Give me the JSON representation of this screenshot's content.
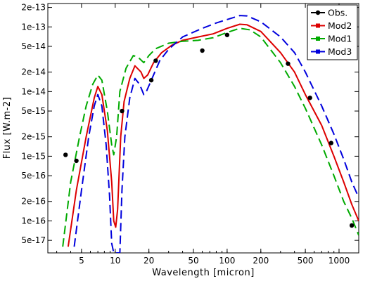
{
  "chart_data": {
    "type": "line",
    "xlabel": "Wavelength [micron]",
    "ylabel": "Flux [W.m-2]",
    "x_scale": "log",
    "y_scale": "log",
    "xlim": [
      2.5,
      1500
    ],
    "ylim": [
      3.2e-17,
      2.3e-13
    ],
    "x_ticks": [
      5,
      10,
      20,
      50,
      100,
      200,
      500,
      1000
    ],
    "x_tick_labels": [
      "5",
      "10",
      "20",
      "50",
      "100",
      "200",
      "500",
      "1000"
    ],
    "y_ticks": [
      5e-17,
      1e-16,
      2e-16,
      5e-16,
      1e-15,
      2e-15,
      5e-15,
      1e-14,
      2e-14,
      5e-14,
      1e-13,
      2e-13
    ],
    "y_tick_labels": [
      "5e-17",
      "1e-16",
      "2e-16",
      "5e-16",
      "1e-15",
      "2e-15",
      "5e-15",
      "1e-14",
      "2e-14",
      "5e-14",
      "1e-13",
      "2e-13"
    ],
    "grid": false,
    "legend_position": "top-right",
    "observations": {
      "name": "Obs.",
      "color": "#000000",
      "points": [
        [
          3.6,
          1.05e-15
        ],
        [
          4.5,
          8.5e-16
        ],
        [
          11.5,
          5e-15
        ],
        [
          21,
          1.5e-14
        ],
        [
          23,
          3e-14
        ],
        [
          60,
          4.3e-14
        ],
        [
          100,
          7.5e-14
        ],
        [
          350,
          2.7e-14
        ],
        [
          550,
          8e-15
        ],
        [
          850,
          1.6e-15
        ],
        [
          1300,
          8.5e-17
        ]
      ]
    },
    "series": [
      {
        "name": "Mod2",
        "color": "#dd0000",
        "dash": "solid",
        "points": [
          [
            3.8,
            4e-17
          ],
          [
            4.5,
            3e-16
          ],
          [
            5.5,
            2e-15
          ],
          [
            6.5,
            8e-15
          ],
          [
            7.0,
            1.2e-14
          ],
          [
            7.6,
            9e-15
          ],
          [
            8.5,
            2.5e-15
          ],
          [
            9.3,
            4e-16
          ],
          [
            9.7,
            1e-16
          ],
          [
            10.1,
            8e-17
          ],
          [
            10.5,
            1.5e-16
          ],
          [
            11.2,
            2e-15
          ],
          [
            12,
            7e-15
          ],
          [
            13.5,
            1.6e-14
          ],
          [
            15,
            2.5e-14
          ],
          [
            17,
            2e-14
          ],
          [
            18,
            1.6e-14
          ],
          [
            19.5,
            1.8e-14
          ],
          [
            22,
            2.8e-14
          ],
          [
            26,
            4e-14
          ],
          [
            32,
            5.2e-14
          ],
          [
            40,
            6.2e-14
          ],
          [
            55,
            7e-14
          ],
          [
            75,
            7.8e-14
          ],
          [
            100,
            9.5e-14
          ],
          [
            130,
            1.1e-13
          ],
          [
            150,
            1.08e-13
          ],
          [
            200,
            8.5e-14
          ],
          [
            300,
            4e-14
          ],
          [
            400,
            2e-14
          ],
          [
            500,
            9e-15
          ],
          [
            700,
            3e-15
          ],
          [
            900,
            1e-15
          ],
          [
            1100,
            4e-16
          ],
          [
            1300,
            1.8e-16
          ],
          [
            1500,
            1e-16
          ]
        ]
      },
      {
        "name": "Mod1",
        "color": "#00aa00",
        "dash": "dashed",
        "points": [
          [
            3.4,
            4e-17
          ],
          [
            4.0,
            4e-16
          ],
          [
            4.8,
            2e-15
          ],
          [
            5.5,
            6e-15
          ],
          [
            6.3,
            1.3e-14
          ],
          [
            7.0,
            1.8e-14
          ],
          [
            7.6,
            1.5e-14
          ],
          [
            8.5,
            5e-15
          ],
          [
            9.3,
            1.5e-15
          ],
          [
            9.7,
            1.05e-15
          ],
          [
            10.3,
            2e-15
          ],
          [
            11,
            1e-14
          ],
          [
            12.5,
            2.3e-14
          ],
          [
            14.5,
            3.6e-14
          ],
          [
            16,
            3.4e-14
          ],
          [
            18,
            2.8e-14
          ],
          [
            20,
            3.6e-14
          ],
          [
            23,
            4.6e-14
          ],
          [
            30,
            5.6e-14
          ],
          [
            40,
            6e-14
          ],
          [
            55,
            6.2e-14
          ],
          [
            75,
            6.8e-14
          ],
          [
            100,
            8.2e-14
          ],
          [
            130,
            9.5e-14
          ],
          [
            160,
            9e-14
          ],
          [
            200,
            7e-14
          ],
          [
            300,
            2.8e-14
          ],
          [
            400,
            1.2e-14
          ],
          [
            500,
            5.5e-15
          ],
          [
            700,
            1.5e-15
          ],
          [
            900,
            5e-16
          ],
          [
            1100,
            2e-16
          ],
          [
            1300,
            1.1e-16
          ],
          [
            1500,
            6e-17
          ]
        ]
      },
      {
        "name": "Mod3",
        "color": "#0000dd",
        "dash": "dashed",
        "points": [
          [
            4.3,
            4e-17
          ],
          [
            5.0,
            3e-16
          ],
          [
            5.8,
            2e-15
          ],
          [
            6.5,
            6e-15
          ],
          [
            7.0,
            9e-15
          ],
          [
            7.6,
            6e-15
          ],
          [
            8.3,
            1.5e-15
          ],
          [
            8.9,
            2.5e-16
          ],
          [
            9.3,
            4.5e-17
          ],
          [
            9.7,
            3.2e-17
          ],
          [
            11.0,
            3.2e-17
          ],
          [
            11.5,
            3e-16
          ],
          [
            12.2,
            2e-15
          ],
          [
            13.5,
            8e-15
          ],
          [
            15,
            1.6e-14
          ],
          [
            16.5,
            1.3e-14
          ],
          [
            18,
            9e-15
          ],
          [
            19,
            1e-14
          ],
          [
            21,
            1.5e-14
          ],
          [
            25,
            3e-14
          ],
          [
            30,
            4.5e-14
          ],
          [
            40,
            7e-14
          ],
          [
            60,
            9.5e-14
          ],
          [
            80,
            1.15e-13
          ],
          [
            100,
            1.3e-13
          ],
          [
            130,
            1.5e-13
          ],
          [
            150,
            1.48e-13
          ],
          [
            200,
            1.2e-13
          ],
          [
            300,
            7e-14
          ],
          [
            400,
            4e-14
          ],
          [
            500,
            2e-14
          ],
          [
            700,
            6e-15
          ],
          [
            900,
            2.2e-15
          ],
          [
            1100,
            9e-16
          ],
          [
            1300,
            4e-16
          ],
          [
            1500,
            2.3e-16
          ]
        ]
      }
    ]
  }
}
